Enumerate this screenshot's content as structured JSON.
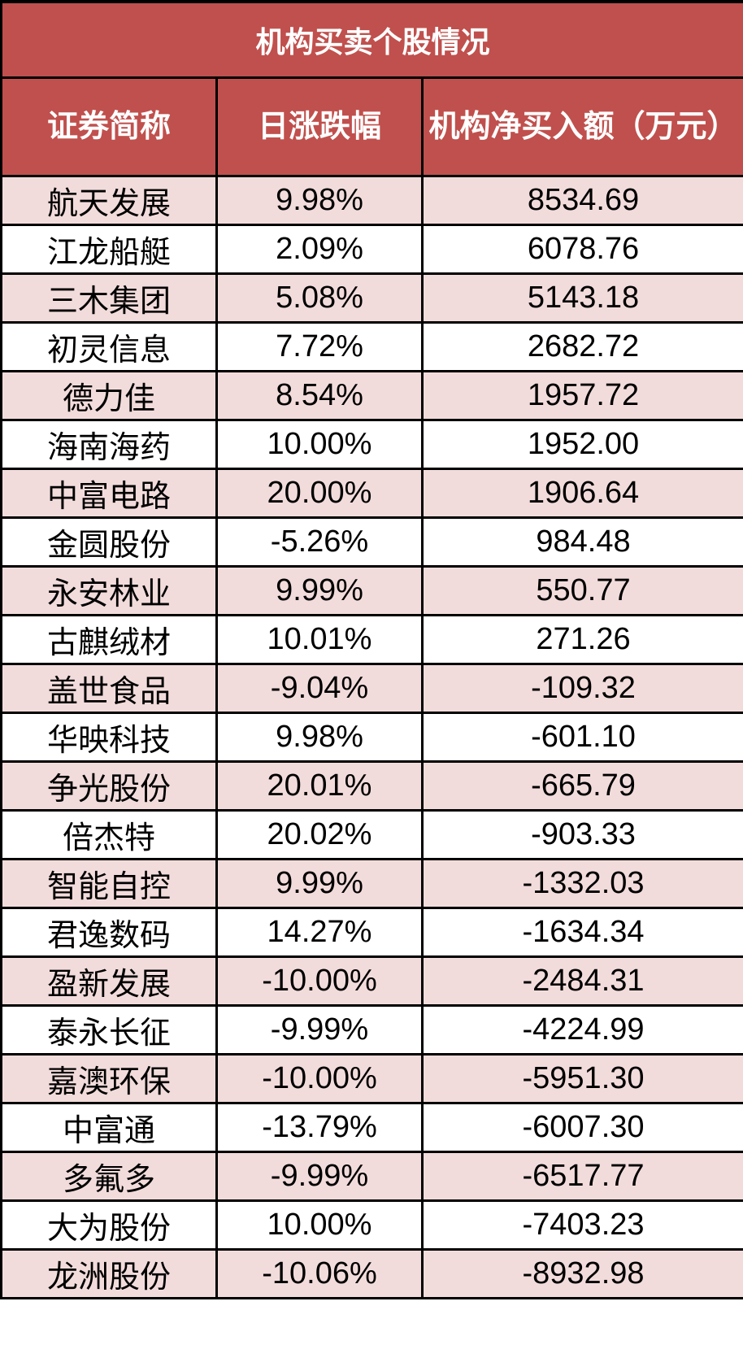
{
  "title": "机构买卖个股情况",
  "columns": [
    "证券简称",
    "日涨跌幅",
    "机构净买入额（万元）"
  ],
  "rows": [
    [
      "航天发展",
      "9.98%",
      "8534.69"
    ],
    [
      "江龙船艇",
      "2.09%",
      "6078.76"
    ],
    [
      "三木集团",
      "5.08%",
      "5143.18"
    ],
    [
      "初灵信息",
      "7.72%",
      "2682.72"
    ],
    [
      "德力佳",
      "8.54%",
      "1957.72"
    ],
    [
      "海南海药",
      "10.00%",
      "1952.00"
    ],
    [
      "中富电路",
      "20.00%",
      "1906.64"
    ],
    [
      "金圆股份",
      "-5.26%",
      "984.48"
    ],
    [
      "永安林业",
      "9.99%",
      "550.77"
    ],
    [
      "古麒绒材",
      "10.01%",
      "271.26"
    ],
    [
      "盖世食品",
      "-9.04%",
      "-109.32"
    ],
    [
      "华映科技",
      "9.98%",
      "-601.10"
    ],
    [
      "争光股份",
      "20.01%",
      "-665.79"
    ],
    [
      "倍杰特",
      "20.02%",
      "-903.33"
    ],
    [
      "智能自控",
      "9.99%",
      "-1332.03"
    ],
    [
      "君逸数码",
      "14.27%",
      "-1634.34"
    ],
    [
      "盈新发展",
      "-10.00%",
      "-2484.31"
    ],
    [
      "泰永长征",
      "-9.99%",
      "-4224.99"
    ],
    [
      "嘉澳环保",
      "-10.00%",
      "-5951.30"
    ],
    [
      "中富通",
      "-13.79%",
      "-6007.30"
    ],
    [
      "多氟多",
      "-9.99%",
      "-6517.77"
    ],
    [
      "大为股份",
      "10.00%",
      "-7403.23"
    ],
    [
      "龙洲股份",
      "-10.06%",
      "-8932.98"
    ]
  ],
  "colors": {
    "header_bg": "#c0504d",
    "row_alt_bg": "#f2dcdb",
    "row_bg": "#ffffff"
  }
}
